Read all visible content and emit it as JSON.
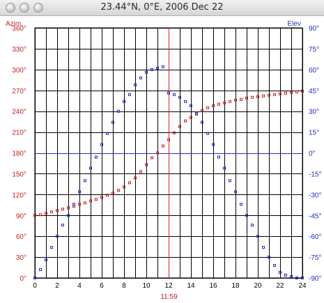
{
  "window": {
    "title": "23.44°N, 0°E, 2006 Dec 22"
  },
  "chart_data": {
    "type": "scatter",
    "x_ticks": [
      "0",
      "2",
      "4",
      "6",
      "8",
      "10",
      "12",
      "14",
      "16",
      "18",
      "20",
      "22",
      "24"
    ],
    "left_axis": {
      "label": "Azim.",
      "range": [
        0,
        360
      ],
      "ticks": [
        "0°",
        "30°",
        "60°",
        "90°",
        "120°",
        "150°",
        "180°",
        "210°",
        "240°",
        "270°",
        "300°",
        "330°",
        "360°"
      ]
    },
    "right_axis": {
      "label": "Elev",
      "range": [
        -90,
        90
      ],
      "ticks": [
        "-90°",
        "-75°",
        "-60°",
        "-45°",
        "-30°",
        "-15°",
        "0°",
        "15°",
        "30°",
        "45°",
        "60°",
        "75°",
        "90°"
      ]
    },
    "noon_marker": {
      "x": 11.98,
      "label": "11:59"
    },
    "horizon_line": 0,
    "grid": true,
    "series": [
      {
        "id": "azimuth",
        "axis": "left",
        "color": "#c81e1e",
        "x": [
          0,
          0.5,
          1,
          1.5,
          2,
          2.5,
          3,
          3.5,
          4,
          4.5,
          5,
          5.5,
          6,
          6.5,
          7,
          7.5,
          8,
          8.5,
          9,
          9.5,
          10,
          10.5,
          11,
          11.5,
          12,
          12.5,
          13,
          13.5,
          14,
          14.5,
          15,
          15.5,
          16,
          16.5,
          17,
          17.5,
          18,
          18.5,
          19,
          19.5,
          20,
          20.5,
          21,
          21.5,
          22,
          22.5,
          23,
          23.5,
          24
        ],
        "y": [
          90,
          91,
          93,
          95,
          97,
          99,
          101,
          103,
          106,
          108,
          111,
          113,
          116,
          119,
          122,
          126,
          131,
          137,
          144,
          153,
          163,
          173,
          180,
          190,
          199,
          209,
          218,
          226,
          231,
          237,
          241,
          245,
          248,
          250,
          252,
          254,
          256,
          257,
          259,
          260,
          261,
          262,
          263,
          264,
          265,
          266,
          267,
          268,
          269
        ]
      },
      {
        "id": "elevation",
        "axis": "right",
        "color": "#1e2ec8",
        "x": [
          0,
          0.5,
          1,
          1.5,
          2,
          2.5,
          3,
          3.5,
          4,
          4.5,
          5,
          5.5,
          6,
          6.5,
          7,
          7.5,
          8,
          8.5,
          9,
          9.5,
          10,
          10.5,
          11,
          11.5,
          12,
          12.5,
          13,
          13.5,
          14,
          14.5,
          15,
          15.5,
          16,
          16.5,
          17,
          17.5,
          18,
          18.5,
          19,
          19.5,
          20,
          20.5,
          21,
          21.5,
          22,
          22.5,
          23,
          23.5,
          24
        ],
        "y": [
          -90,
          -84,
          -77,
          -68,
          -60,
          -52,
          -45,
          -37,
          -28,
          -20,
          -11,
          -3,
          6,
          14,
          22,
          30,
          37,
          42,
          49,
          54,
          58,
          60,
          61,
          62,
          43,
          42,
          40,
          37,
          34,
          28,
          22,
          14,
          6,
          -3,
          -11,
          -20,
          -28,
          -37,
          -45,
          -52,
          -60,
          -68,
          -75,
          -81,
          -86,
          -88,
          -89,
          -90,
          -90
        ]
      }
    ]
  }
}
